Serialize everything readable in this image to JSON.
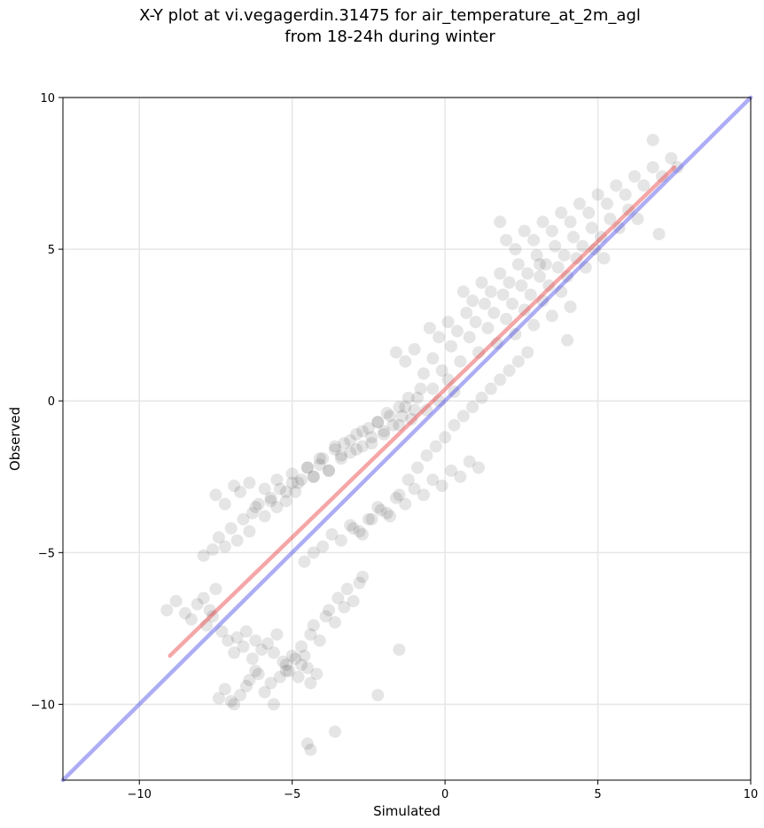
{
  "chart_data": {
    "type": "scatter",
    "title_line1": "X-Y plot at vi.vegagerdin.31475 for air_temperature_at_2m_agl",
    "title_line2": "from 18-24h during winter",
    "xlabel": "Simulated",
    "ylabel": "Observed",
    "xlim": [
      -12.5,
      10
    ],
    "ylim": [
      -12.5,
      10
    ],
    "xticks": [
      -10,
      -5,
      0,
      5,
      10
    ],
    "yticks": [
      -10,
      -5,
      0,
      5,
      10
    ],
    "xtick_labels": [
      "−10",
      "−5",
      "0",
      "5",
      "10"
    ],
    "ytick_labels": [
      "−10",
      "−5",
      "0",
      "5",
      "10"
    ],
    "grid": true,
    "point_color": "#000000",
    "point_opacity": 0.1,
    "lines": [
      {
        "role": "fit",
        "color": "#e8393b",
        "opacity": 0.45,
        "x": [
          -9.0,
          7.5
        ],
        "y": [
          -8.4,
          7.7
        ]
      },
      {
        "role": "identity",
        "color": "#3232e6",
        "opacity": 0.4,
        "x": [
          -12.5,
          10
        ],
        "y": [
          -12.5,
          10
        ]
      }
    ],
    "points": {
      "x": [
        -9.1,
        -8.8,
        -8.5,
        -8.3,
        -8.1,
        -7.9,
        -7.7,
        -7.6,
        -7.5,
        -7.8,
        -7.3,
        -7.1,
        -6.9,
        -6.8,
        -6.6,
        -6.5,
        -6.3,
        -6.2,
        -6.0,
        -5.8,
        -5.6,
        -5.5,
        -5.3,
        -5.2,
        -5.0,
        -4.8,
        -4.7,
        -4.5,
        -4.4,
        -4.2,
        -7.4,
        -7.2,
        -7.0,
        -6.9,
        -6.7,
        -6.5,
        -6.4,
        -6.2,
        -6.1,
        -5.9,
        -5.7,
        -5.6,
        -5.4,
        -5.2,
        -5.1,
        -4.9,
        -4.7,
        -4.6,
        -4.4,
        -4.3,
        -4.1,
        -3.9,
        -3.8,
        -3.6,
        -3.5,
        -3.3,
        -3.2,
        -3.0,
        -2.8,
        -2.7,
        -7.9,
        -7.6,
        -7.4,
        -7.2,
        -7.0,
        -6.8,
        -6.6,
        -6.4,
        -6.3,
        -6.1,
        -5.9,
        -5.7,
        -5.5,
        -5.4,
        -5.2,
        -5.0,
        -4.9,
        -4.7,
        -4.5,
        -4.3,
        -4.1,
        -4.0,
        -3.8,
        -3.6,
        -3.4,
        -3.3,
        -3.1,
        -2.9,
        -2.7,
        -2.5,
        -2.4,
        -2.2,
        -2.0,
        -1.9,
        -1.7,
        -1.5,
        -1.4,
        -1.2,
        -1.0,
        -0.8,
        -7.5,
        -7.2,
        -6.9,
        -6.7,
        -6.4,
        -6.2,
        -5.9,
        -5.7,
        -5.5,
        -5.2,
        -5.0,
        -4.8,
        -4.5,
        -4.3,
        -4.1,
        -3.8,
        -3.6,
        -3.4,
        -3.1,
        -2.9,
        -2.7,
        -2.4,
        -2.2,
        -2.0,
        -1.8,
        -1.5,
        -1.3,
        -1.1,
        -0.9,
        -0.6,
        -0.4,
        -0.2,
        0.1,
        0.3,
        -4.6,
        -4.3,
        -4.0,
        -3.7,
        -3.4,
        -3.1,
        -2.8,
        -2.5,
        -2.2,
        -1.9,
        -1.6,
        -1.3,
        -1.0,
        -0.7,
        -0.4,
        -0.1,
        0.2,
        0.5,
        0.8,
        1.1,
        -3.0,
        -2.7,
        -2.4,
        -2.1,
        -1.8,
        -1.5,
        -1.2,
        -0.9,
        -0.6,
        -0.3,
        0.0,
        0.3,
        0.6,
        0.9,
        1.2,
        1.5,
        1.8,
        2.1,
        2.4,
        2.7,
        -1.6,
        -1.3,
        -1.0,
        -0.7,
        -0.4,
        -0.1,
        0.2,
        0.5,
        0.8,
        1.1,
        1.4,
        1.7,
        2.0,
        2.3,
        2.6,
        2.9,
        3.2,
        3.5,
        3.8,
        4.1,
        -0.5,
        -0.2,
        0.1,
        0.4,
        0.7,
        1.0,
        1.3,
        1.6,
        1.9,
        2.2,
        2.5,
        2.8,
        3.1,
        3.4,
        3.7,
        4.0,
        4.3,
        4.6,
        4.9,
        5.2,
        0.6,
        0.9,
        1.2,
        1.5,
        1.8,
        2.1,
        2.4,
        2.7,
        3.0,
        3.3,
        3.6,
        3.9,
        4.2,
        4.5,
        4.8,
        5.1,
        5.4,
        5.7,
        6.0,
        6.3,
        2.0,
        2.3,
        2.6,
        2.9,
        3.2,
        3.5,
        3.8,
        4.1,
        4.4,
        4.7,
        5.0,
        5.3,
        5.6,
        5.9,
        6.2,
        6.5,
        6.8,
        7.1,
        7.4,
        7.6,
        -4.5,
        -4.4,
        -3.6,
        -2.2,
        -1.5,
        1.8,
        3.1,
        4.0,
        6.8,
        7.0
      ],
      "y": [
        -6.9,
        -6.6,
        -7.0,
        -7.2,
        -6.7,
        -6.5,
        -6.9,
        -7.1,
        -6.2,
        -7.4,
        -7.6,
        -7.9,
        -8.3,
        -7.8,
        -8.1,
        -7.6,
        -8.5,
        -7.9,
        -8.2,
        -8.0,
        -8.3,
        -7.7,
        -8.6,
        -8.9,
        -8.4,
        -9.1,
        -8.7,
        -8.8,
        -9.3,
        -9.0,
        -9.8,
        -9.5,
        -9.9,
        -10.0,
        -9.7,
        -9.4,
        -9.2,
        -8.9,
        -9.0,
        -9.6,
        -9.3,
        -10.0,
        -9.1,
        -8.7,
        -8.9,
        -8.5,
        -8.1,
        -8.4,
        -7.7,
        -7.4,
        -7.9,
        -7.1,
        -6.9,
        -7.3,
        -6.5,
        -6.8,
        -6.2,
        -6.6,
        -6.0,
        -5.8,
        -5.1,
        -4.9,
        -4.5,
        -4.8,
        -4.2,
        -4.6,
        -3.9,
        -4.3,
        -3.7,
        -3.4,
        -3.8,
        -3.2,
        -3.5,
        -2.9,
        -3.3,
        -2.7,
        -3.0,
        -2.6,
        -2.2,
        -2.5,
        -2.1,
        -1.9,
        -2.3,
        -1.6,
        -1.9,
        -1.4,
        -1.7,
        -1.1,
        -1.5,
        -0.9,
        -1.2,
        -0.7,
        -1.0,
        -0.4,
        -0.8,
        -0.2,
        -0.5,
        0.1,
        -0.3,
        0.4,
        -3.1,
        -3.4,
        -2.8,
        -3.0,
        -2.7,
        -3.5,
        -2.9,
        -3.3,
        -2.6,
        -3.0,
        -2.4,
        -2.7,
        -2.2,
        -2.5,
        -1.9,
        -2.3,
        -1.5,
        -1.8,
        -1.3,
        -1.6,
        -1.0,
        -1.4,
        -0.7,
        -1.1,
        -0.5,
        -0.8,
        -0.2,
        -0.6,
        0.1,
        -0.3,
        0.4,
        0.0,
        0.7,
        0.3,
        -5.3,
        -5.0,
        -4.8,
        -4.4,
        -4.6,
        -4.1,
        -4.3,
        -3.9,
        -3.5,
        -3.7,
        -3.2,
        -3.4,
        -2.9,
        -3.1,
        -2.6,
        -2.8,
        -2.3,
        -2.5,
        -2.0,
        -2.2,
        -4.2,
        -4.4,
        -3.9,
        -3.6,
        -3.8,
        -3.1,
        -2.6,
        -2.2,
        -1.8,
        -1.5,
        -1.2,
        -0.8,
        -0.5,
        -0.2,
        0.1,
        0.4,
        0.7,
        1.0,
        1.3,
        1.6,
        1.6,
        1.3,
        1.7,
        0.9,
        1.4,
        1.0,
        1.8,
        1.3,
        2.1,
        1.6,
        2.4,
        1.9,
        2.7,
        2.2,
        3.0,
        2.5,
        3.3,
        2.8,
        3.6,
        3.1,
        2.4,
        2.1,
        2.6,
        2.3,
        2.9,
        2.6,
        3.2,
        2.9,
        3.5,
        3.2,
        3.8,
        3.5,
        4.1,
        3.8,
        4.4,
        4.1,
        4.7,
        4.4,
        5.0,
        4.7,
        3.6,
        3.3,
        3.9,
        3.6,
        4.2,
        3.9,
        4.5,
        4.2,
        4.8,
        4.5,
        5.1,
        4.8,
        5.4,
        5.1,
        5.7,
        5.4,
        6.0,
        5.7,
        6.3,
        6.0,
        5.3,
        5.0,
        5.6,
        5.3,
        5.9,
        5.6,
        6.2,
        5.9,
        6.5,
        6.2,
        6.8,
        6.5,
        7.1,
        6.8,
        7.4,
        7.1,
        7.7,
        7.4,
        8.0,
        7.7,
        -11.3,
        -11.5,
        -10.9,
        -9.7,
        -8.2,
        5.9,
        4.5,
        2.0,
        8.6,
        5.5
      ]
    }
  }
}
